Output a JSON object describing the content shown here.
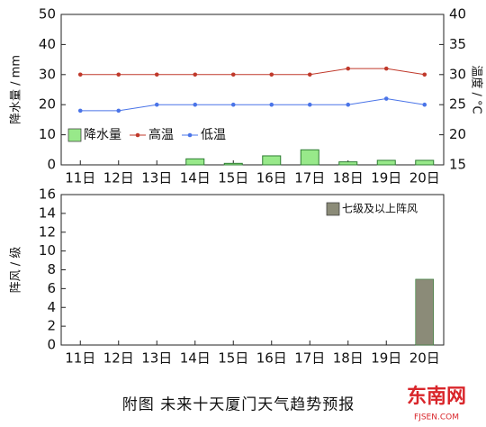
{
  "chart_data": [
    {
      "type": "bar_line",
      "categories": [
        "11日",
        "12日",
        "13日",
        "14日",
        "15日",
        "16日",
        "17日",
        "18日",
        "19日",
        "20日"
      ],
      "ylabel": "降水量 / mm",
      "y2label": "温度 / °C",
      "ylim": [
        0,
        50
      ],
      "yticks": [
        0,
        10,
        20,
        30,
        40,
        50
      ],
      "y2lim": [
        15,
        40
      ],
      "y2ticks": [
        15,
        20,
        25,
        30,
        35,
        40
      ],
      "legend": "lower left",
      "series": [
        {
          "name": "降水量",
          "kind": "bar",
          "color": "#98e98a",
          "values": [
            0,
            0,
            0,
            2,
            0.5,
            3,
            5,
            1,
            1.5,
            1.5
          ]
        },
        {
          "name": "高温",
          "kind": "line",
          "axis": "y2",
          "color": "#c0392b",
          "values": [
            30,
            30,
            30,
            30,
            30,
            30,
            30,
            31,
            31,
            30
          ]
        },
        {
          "name": "低温",
          "kind": "line",
          "axis": "y2",
          "color": "#4a74e8",
          "values": [
            24,
            24,
            25,
            25,
            25,
            25,
            25,
            25,
            26,
            25
          ]
        }
      ]
    },
    {
      "type": "bar_line",
      "categories": [
        "11日",
        "12日",
        "13日",
        "14日",
        "15日",
        "16日",
        "17日",
        "18日",
        "19日",
        "20日"
      ],
      "ylabel": "阵风 / 级",
      "ylim": [
        0,
        16
      ],
      "yticks": [
        0,
        2,
        4,
        6,
        8,
        10,
        12,
        14,
        16
      ],
      "legend": "upper right",
      "series": [
        {
          "name": "七级及以上阵风",
          "kind": "bar",
          "color": "#8b8b78",
          "values": [
            0,
            0,
            0,
            0,
            0,
            0,
            0,
            0,
            0,
            7
          ]
        }
      ]
    }
  ],
  "caption": "附图  未来十天厦门天气趋势预报",
  "watermark": {
    "name": "东南网",
    "url": "FJSEN.COM"
  }
}
